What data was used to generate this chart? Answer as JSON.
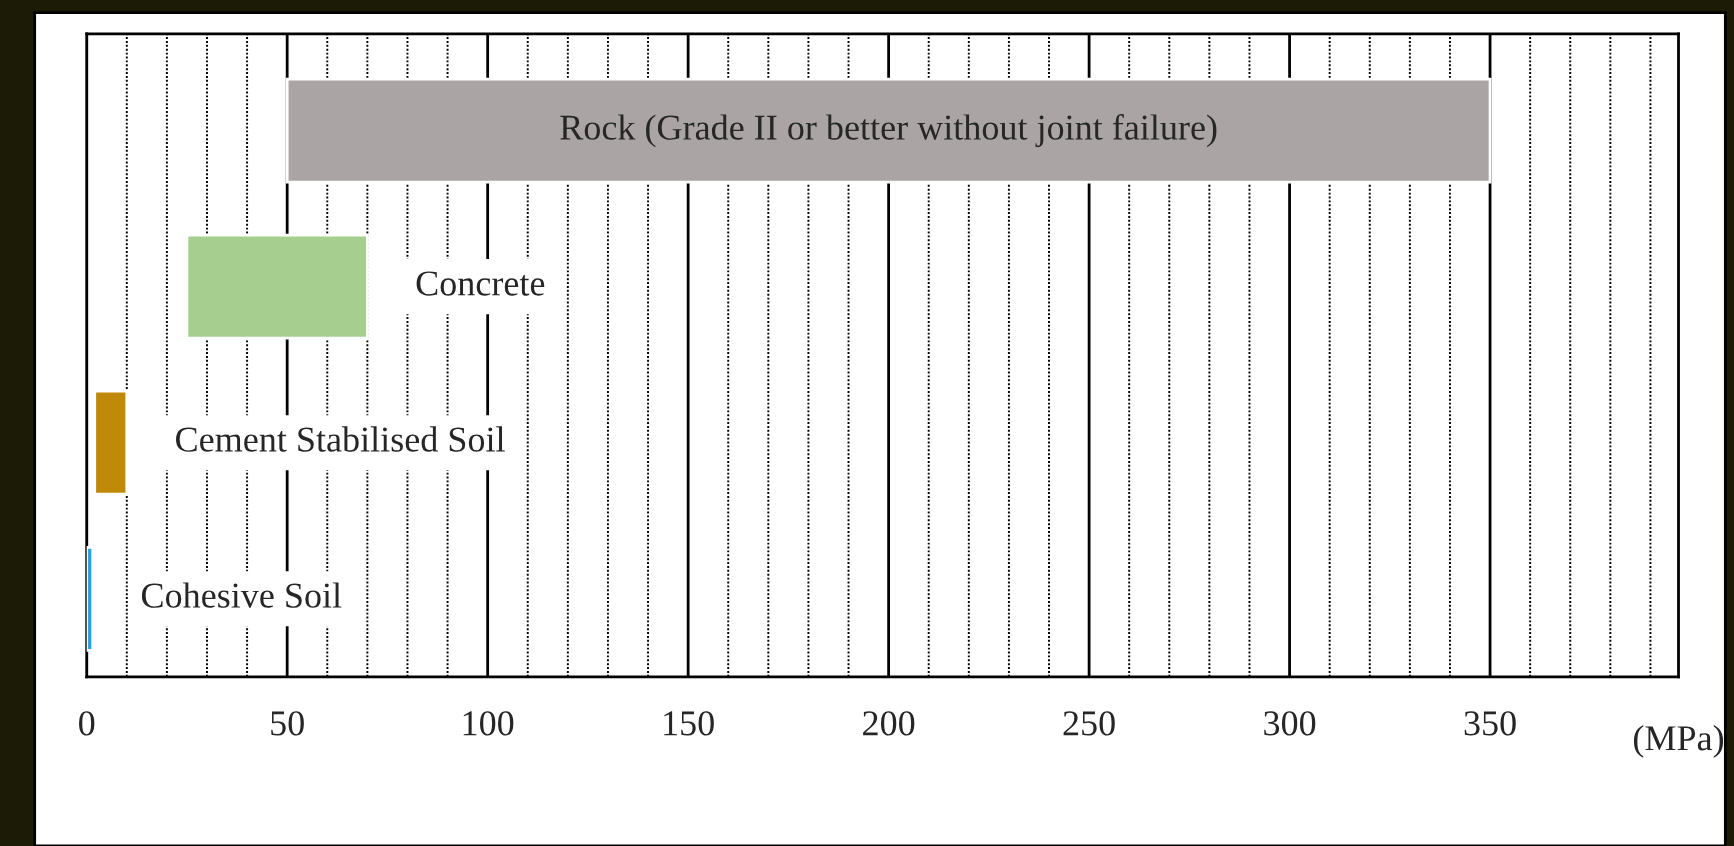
{
  "chart_data": {
    "type": "bar",
    "orientation": "horizontal",
    "categories": [
      "Rock (Grade II or better without joint failure)",
      "Concrete",
      "Cement Stabilised Soil",
      "Cohesive Soil"
    ],
    "base": [
      50,
      25,
      2,
      0
    ],
    "values": [
      300,
      45,
      8,
      1.5
    ],
    "colors": [
      "#aaa5a4",
      "#a6cf8f",
      "#c08a08",
      "#1aa7e0"
    ],
    "xlabel": "(MPa)",
    "xlim": [
      0,
      397
    ],
    "xticks": [
      0,
      {
        "value": 10,
        "label": null
      },
      {
        "value": 20,
        "label": null
      },
      {
        "value": 30,
        "label": null
      },
      {
        "value": 40,
        "label": null
      },
      50,
      {
        "value": 60,
        "label": null
      },
      {
        "value": 70,
        "label": null
      },
      {
        "value": 80,
        "label": null
      },
      {
        "value": 90,
        "label": null
      },
      100,
      {
        "value": 110,
        "label": null
      },
      {
        "value": 120,
        "label": null
      },
      {
        "value": 130,
        "label": null
      },
      {
        "value": 140,
        "label": null
      },
      150,
      {
        "value": 160,
        "label": null
      },
      {
        "value": 170,
        "label": null
      },
      {
        "value": 180,
        "label": null
      },
      {
        "value": 190,
        "label": null
      },
      200,
      {
        "value": 210,
        "label": null
      },
      {
        "value": 220,
        "label": null
      },
      {
        "value": 230,
        "label": null
      },
      {
        "value": 240,
        "label": null
      },
      250,
      {
        "value": 260,
        "label": null
      },
      {
        "value": 270,
        "label": null
      },
      {
        "value": 280,
        "label": null
      },
      {
        "value": 290,
        "label": null
      },
      300,
      {
        "value": 310,
        "label": null
      },
      {
        "value": 320,
        "label": null
      },
      {
        "value": 330,
        "label": null
      },
      {
        "value": 340,
        "label": null
      },
      350,
      {
        "value": 360,
        "label": null
      },
      {
        "value": 370,
        "label": null
      },
      {
        "value": 380,
        "label": null
      },
      {
        "value": 390,
        "label": null
      }
    ],
    "grid": "x",
    "tick_labels": "x"
  }
}
